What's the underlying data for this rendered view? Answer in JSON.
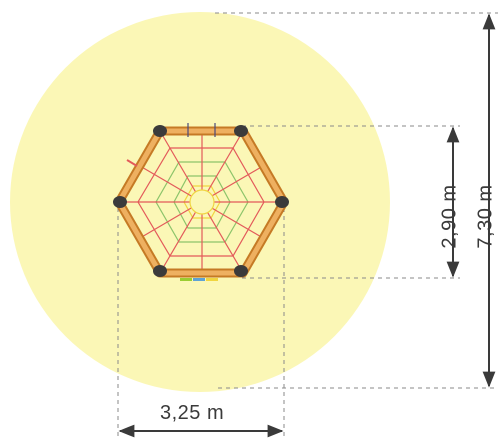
{
  "dimensions": {
    "width_label": "3,25 m",
    "height_inner_label": "2,90 m",
    "height_total_label": "7,30 m"
  },
  "colors": {
    "safety_zone": "#fbf7b6",
    "frame_wood": "#e7a249",
    "frame_outline": "#c57a25",
    "post": "#3b3b3b",
    "dimension_line": "#3a3a3a",
    "web_red": "#e35a5a",
    "web_green": "#8cc46a",
    "web_yellow": "#f0d540"
  }
}
